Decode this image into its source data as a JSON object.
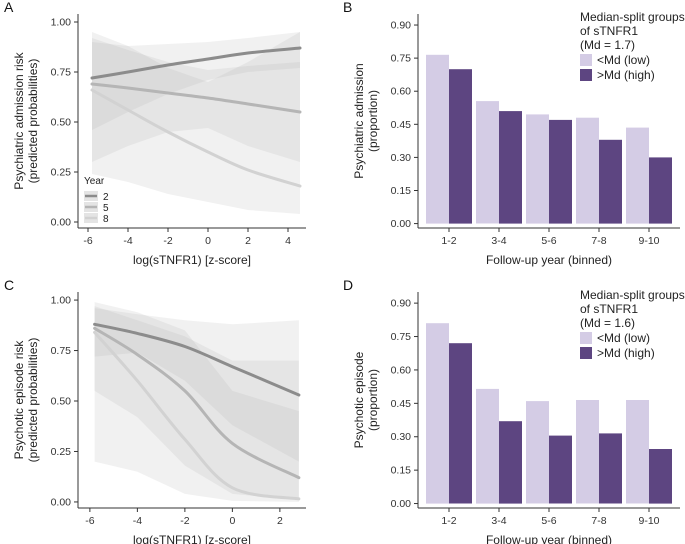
{
  "chart_data": [
    {
      "panel": "A",
      "type": "line",
      "xlabel": "log(sTNFR1) [z-score]",
      "ylabel": "Psychiatric admission risk\n(predicted probabilities)",
      "xticks": [
        "-6",
        "-4",
        "-2",
        "0",
        "2",
        "4"
      ],
      "yticks": [
        "0.00",
        "0.25",
        "0.50",
        "0.75",
        "1.00"
      ],
      "xlim": [
        -6.5,
        4.9
      ],
      "ylim": [
        -0.03,
        1.04
      ],
      "legend": {
        "title": "Year",
        "position": "bottom-left"
      },
      "series": [
        {
          "name": "2",
          "color": "#8c8c8c",
          "x": [
            -5.8,
            -4,
            -2,
            0,
            2,
            4.6
          ],
          "y": [
            0.72,
            0.75,
            0.785,
            0.815,
            0.845,
            0.87
          ],
          "lower": [
            0.46,
            0.55,
            0.64,
            0.71,
            0.75,
            0.77
          ],
          "upper": [
            0.9,
            0.88,
            0.89,
            0.9,
            0.92,
            0.95
          ]
        },
        {
          "name": "5",
          "color": "#b5b5b5",
          "x": [
            -5.8,
            -4,
            -2,
            0,
            2,
            4.6
          ],
          "y": [
            0.69,
            0.67,
            0.645,
            0.62,
            0.59,
            0.55
          ],
          "lower": [
            0.3,
            0.38,
            0.45,
            0.47,
            0.38,
            0.3
          ],
          "upper": [
            0.92,
            0.86,
            0.8,
            0.76,
            0.78,
            0.8
          ]
        },
        {
          "name": "8",
          "color": "#d2d2d2",
          "x": [
            -5.8,
            -4,
            -2,
            0,
            2,
            4.6
          ],
          "y": [
            0.66,
            0.56,
            0.45,
            0.35,
            0.26,
            0.18
          ],
          "lower": [
            0.24,
            0.2,
            0.14,
            0.1,
            0.06,
            0.04
          ],
          "upper": [
            0.95,
            0.88,
            0.77,
            0.7,
            0.8,
            0.95
          ]
        }
      ]
    },
    {
      "panel": "B",
      "type": "bar",
      "xlabel": "Follow-up year (binned)",
      "ylabel": "Psychiatric admission\n(proportion)",
      "categories": [
        "1-2",
        "3-4",
        "5-6",
        "7-8",
        "9-10"
      ],
      "yticks": [
        "0.00",
        "0.15",
        "0.30",
        "0.45",
        "0.60",
        "0.75",
        "0.90"
      ],
      "ylim": [
        -0.02,
        0.95
      ],
      "legend": {
        "title": [
          "Median-split groups",
          "of sTNFR1",
          "(Md = 1.7)"
        ],
        "position": "top-right"
      },
      "series": [
        {
          "name": "<Md (low)",
          "color": "#d4cce5",
          "values": [
            0.765,
            0.555,
            0.495,
            0.48,
            0.435
          ]
        },
        {
          "name": ">Md (high)",
          "color": "#5d4581",
          "values": [
            0.7,
            0.51,
            0.47,
            0.38,
            0.3
          ]
        }
      ]
    },
    {
      "panel": "C",
      "type": "line",
      "xlabel": "log(sTNFR1) [z-score]",
      "ylabel": "Psychotic episode risk\n(predicted probabilities)",
      "xticks": [
        "-6",
        "-4",
        "-2",
        "0",
        "2"
      ],
      "yticks": [
        "0.00",
        "0.25",
        "0.50",
        "0.75",
        "1.00"
      ],
      "xlim": [
        -6.5,
        3.1
      ],
      "ylim": [
        -0.03,
        1.04
      ],
      "series": [
        {
          "name": "2",
          "color": "#8c8c8c",
          "x": [
            -5.8,
            -4,
            -2,
            0,
            2.8
          ],
          "y": [
            0.88,
            0.835,
            0.77,
            0.67,
            0.53
          ],
          "lower": [
            0.72,
            0.74,
            0.6,
            0.38,
            0.2
          ],
          "upper": [
            0.96,
            0.93,
            0.9,
            0.88,
            0.9
          ]
        },
        {
          "name": "5",
          "color": "#b5b5b5",
          "x": [
            -5.8,
            -4,
            -2,
            0,
            2.8
          ],
          "y": [
            0.86,
            0.73,
            0.55,
            0.29,
            0.12
          ],
          "lower": [
            0.55,
            0.42,
            0.18,
            0.04,
            0.01
          ],
          "upper": [
            0.97,
            0.9,
            0.82,
            0.7,
            0.7
          ]
        },
        {
          "name": "8",
          "color": "#d2d2d2",
          "x": [
            -5.8,
            -4,
            -2,
            0,
            2.8
          ],
          "y": [
            0.84,
            0.6,
            0.31,
            0.07,
            0.015
          ],
          "lower": [
            0.2,
            0.15,
            0.04,
            0.005,
            0.0
          ],
          "upper": [
            0.99,
            0.94,
            0.85,
            0.55,
            0.45
          ]
        }
      ]
    },
    {
      "panel": "D",
      "type": "bar",
      "xlabel": "Follow-up year (binned)",
      "ylabel": "Psychotic episode\n(proportion)",
      "categories": [
        "1-2",
        "3-4",
        "5-6",
        "7-8",
        "9-10"
      ],
      "yticks": [
        "0.00",
        "0.15",
        "0.30",
        "0.45",
        "0.60",
        "0.75",
        "0.90"
      ],
      "ylim": [
        -0.02,
        0.95
      ],
      "legend": {
        "title": [
          "Median-split groups",
          "of sTNFR1",
          "(Md = 1.6)"
        ],
        "position": "top-right"
      },
      "series": [
        {
          "name": "<Md (low)",
          "color": "#d4cce5",
          "values": [
            0.81,
            0.515,
            0.46,
            0.465,
            0.465
          ]
        },
        {
          "name": ">Md (high)",
          "color": "#5d4581",
          "values": [
            0.72,
            0.37,
            0.305,
            0.315,
            0.245
          ]
        }
      ]
    }
  ]
}
